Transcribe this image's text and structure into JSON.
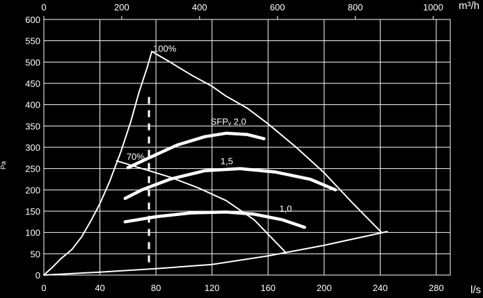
{
  "colors": {
    "background": "#000000",
    "foreground": "#ffffff"
  },
  "chart_data": {
    "type": "line",
    "title": "",
    "xlabel": "l/s",
    "ylabel": "Pa",
    "x2label": "m³/h",
    "xlim": [
      0,
      290
    ],
    "ylim": [
      0,
      600
    ],
    "x2lim": [
      0,
      1044
    ],
    "grid": true,
    "x_ticks": [
      0,
      40,
      80,
      120,
      160,
      200,
      240,
      280
    ],
    "y_ticks": [
      0,
      50,
      100,
      150,
      200,
      250,
      300,
      350,
      400,
      450,
      500,
      550,
      600
    ],
    "x2_ticks": [
      0,
      200,
      400,
      600,
      800,
      1000
    ],
    "reference_line_x": 75,
    "series": [
      {
        "name": "100%",
        "label_at": [
          78,
          524
        ],
        "width": "thin",
        "points": [
          [
            0,
            0
          ],
          [
            6,
            18
          ],
          [
            12,
            38
          ],
          [
            20,
            60
          ],
          [
            27,
            90
          ],
          [
            34,
            130
          ],
          [
            40,
            168
          ],
          [
            47,
            220
          ],
          [
            55,
            290
          ],
          [
            62,
            360
          ],
          [
            68,
            430
          ],
          [
            74,
            490
          ],
          [
            77,
            525
          ],
          [
            90,
            500
          ],
          [
            105,
            470
          ],
          [
            120,
            443
          ],
          [
            130,
            420
          ],
          [
            145,
            392
          ],
          [
            160,
            355
          ],
          [
            180,
            300
          ],
          [
            200,
            240
          ],
          [
            220,
            170
          ],
          [
            241,
            100
          ]
        ]
      },
      {
        "name": "70%",
        "label_at": [
          59,
          271
        ],
        "width": "thin",
        "points": [
          [
            52,
            268
          ],
          [
            70,
            250
          ],
          [
            90,
            230
          ],
          [
            110,
            205
          ],
          [
            130,
            175
          ],
          [
            150,
            130
          ],
          [
            172,
            55
          ]
        ]
      },
      {
        "name": "",
        "width": "thin",
        "points": [
          [
            0,
            0
          ],
          [
            40,
            7
          ],
          [
            80,
            15
          ],
          [
            120,
            25
          ],
          [
            160,
            45
          ],
          [
            200,
            70
          ],
          [
            245,
            102
          ]
        ]
      },
      {
        "name": "SFPᵥ 2,0",
        "label_at": [
          119,
          353
        ],
        "width": "thick",
        "points": [
          [
            60,
            252
          ],
          [
            75,
            275
          ],
          [
            95,
            305
          ],
          [
            115,
            325
          ],
          [
            130,
            333
          ],
          [
            145,
            330
          ],
          [
            157,
            320
          ]
        ]
      },
      {
        "name": "1,5",
        "label_at": [
          126,
          260
        ],
        "width": "thick",
        "points": [
          [
            58,
            180
          ],
          [
            70,
            200
          ],
          [
            90,
            225
          ],
          [
            115,
            245
          ],
          [
            140,
            250
          ],
          [
            165,
            242
          ],
          [
            190,
            225
          ],
          [
            208,
            200
          ]
        ]
      },
      {
        "name": "1,0",
        "label_at": [
          168,
          148
        ],
        "width": "thick",
        "points": [
          [
            58,
            125
          ],
          [
            80,
            137
          ],
          [
            105,
            146
          ],
          [
            130,
            148
          ],
          [
            150,
            143
          ],
          [
            170,
            130
          ],
          [
            186,
            112
          ]
        ]
      }
    ]
  }
}
